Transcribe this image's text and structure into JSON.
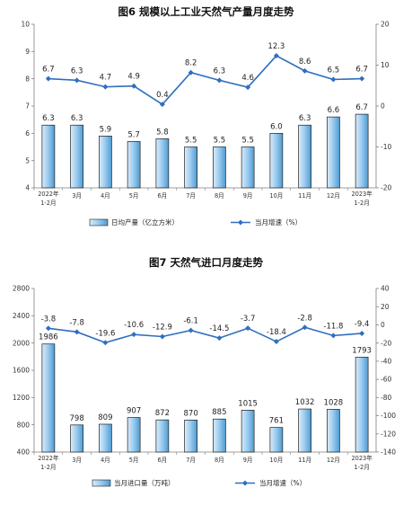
{
  "chart_data": [
    {
      "type": "bar",
      "title": "图6  规模以上工业天然气产量月度走势",
      "categories": [
        [
          "2022年",
          "1-2月"
        ],
        [
          "3月"
        ],
        [
          "4月"
        ],
        [
          "5月"
        ],
        [
          "6月"
        ],
        [
          "7月"
        ],
        [
          "8月"
        ],
        [
          "9月"
        ],
        [
          "10月"
        ],
        [
          "11月"
        ],
        [
          "12月"
        ],
        [
          "2023年",
          "1-2月"
        ]
      ],
      "series": [
        {
          "name": "日均产量（亿立方米）",
          "type": "bar",
          "axis": "left",
          "values": [
            6.3,
            6.3,
            5.9,
            5.7,
            5.8,
            5.5,
            5.5,
            5.5,
            6.0,
            6.3,
            6.6,
            6.7
          ]
        },
        {
          "name": "当月增速（%）",
          "type": "line",
          "axis": "right",
          "values": [
            6.7,
            6.3,
            4.7,
            4.9,
            0.4,
            8.2,
            6.3,
            4.6,
            12.3,
            8.6,
            6.5,
            6.7
          ]
        }
      ],
      "left_axis": {
        "ylim": [
          4,
          10
        ],
        "ticks": [
          4,
          5,
          6,
          7,
          8,
          9,
          10
        ]
      },
      "right_axis": {
        "ylim": [
          -20,
          20
        ],
        "ticks": [
          -20,
          -10,
          0,
          10,
          20
        ]
      },
      "bar_labels": [
        "6.3",
        "6.3",
        "5.9",
        "5.7",
        "5.8",
        "5.5",
        "5.5",
        "5.5",
        "6.0",
        "6.3",
        "6.6",
        "6.7"
      ],
      "line_labels": [
        "6.7",
        "6.3",
        "4.7",
        "4.9",
        "0.4",
        "8.2",
        "6.3",
        "4.6",
        "12.3",
        "8.6",
        "6.5",
        "6.7"
      ],
      "legend_position": "bottom",
      "grid": false
    },
    {
      "type": "bar",
      "title": "图7  天然气进口月度走势",
      "categories": [
        [
          "2022年",
          "1-2月"
        ],
        [
          "3月"
        ],
        [
          "4月"
        ],
        [
          "5月"
        ],
        [
          "6月"
        ],
        [
          "7月"
        ],
        [
          "8月"
        ],
        [
          "9月"
        ],
        [
          "10月"
        ],
        [
          "11月"
        ],
        [
          "12月"
        ],
        [
          "2023年",
          "1-2月"
        ]
      ],
      "series": [
        {
          "name": "当月进口量（万吨）",
          "type": "bar",
          "axis": "left",
          "values": [
            1986,
            798,
            809,
            907,
            872,
            870,
            885,
            1015,
            761,
            1032,
            1028,
            1793
          ]
        },
        {
          "name": "当月增速（%）",
          "type": "line",
          "axis": "right",
          "values": [
            -3.8,
            -7.8,
            -19.6,
            -10.6,
            -12.9,
            -6.1,
            -14.5,
            -3.7,
            -18.4,
            -2.8,
            -11.8,
            -9.4
          ]
        }
      ],
      "left_axis": {
        "ylim": [
          400,
          2800
        ],
        "ticks": [
          400,
          800,
          1200,
          1600,
          2000,
          2400,
          2800
        ]
      },
      "right_axis": {
        "ylim": [
          -140,
          40
        ],
        "ticks": [
          -140,
          -120,
          -100,
          -80,
          -60,
          -40,
          -20,
          0,
          20,
          40
        ]
      },
      "bar_labels": [
        "1986",
        "798",
        "809",
        "907",
        "872",
        "870",
        "885",
        "1015",
        "761",
        "1032",
        "1028",
        "1793"
      ],
      "line_labels": [
        "-3.8",
        "-7.8",
        "-19.6",
        "-10.6",
        "-12.9",
        "-6.1",
        "-14.5",
        "-3.7",
        "-18.4",
        "-2.8",
        "-11.8",
        "-9.4"
      ],
      "legend_position": "bottom",
      "grid": false
    }
  ],
  "colors": {
    "bar_fill_light": "#d9ecfa",
    "bar_fill_dark": "#5aa6d9",
    "bar_stroke": "#1f1f1f",
    "line": "#2f6fbf",
    "axis": "#7f7f7f",
    "text": "#222222"
  }
}
